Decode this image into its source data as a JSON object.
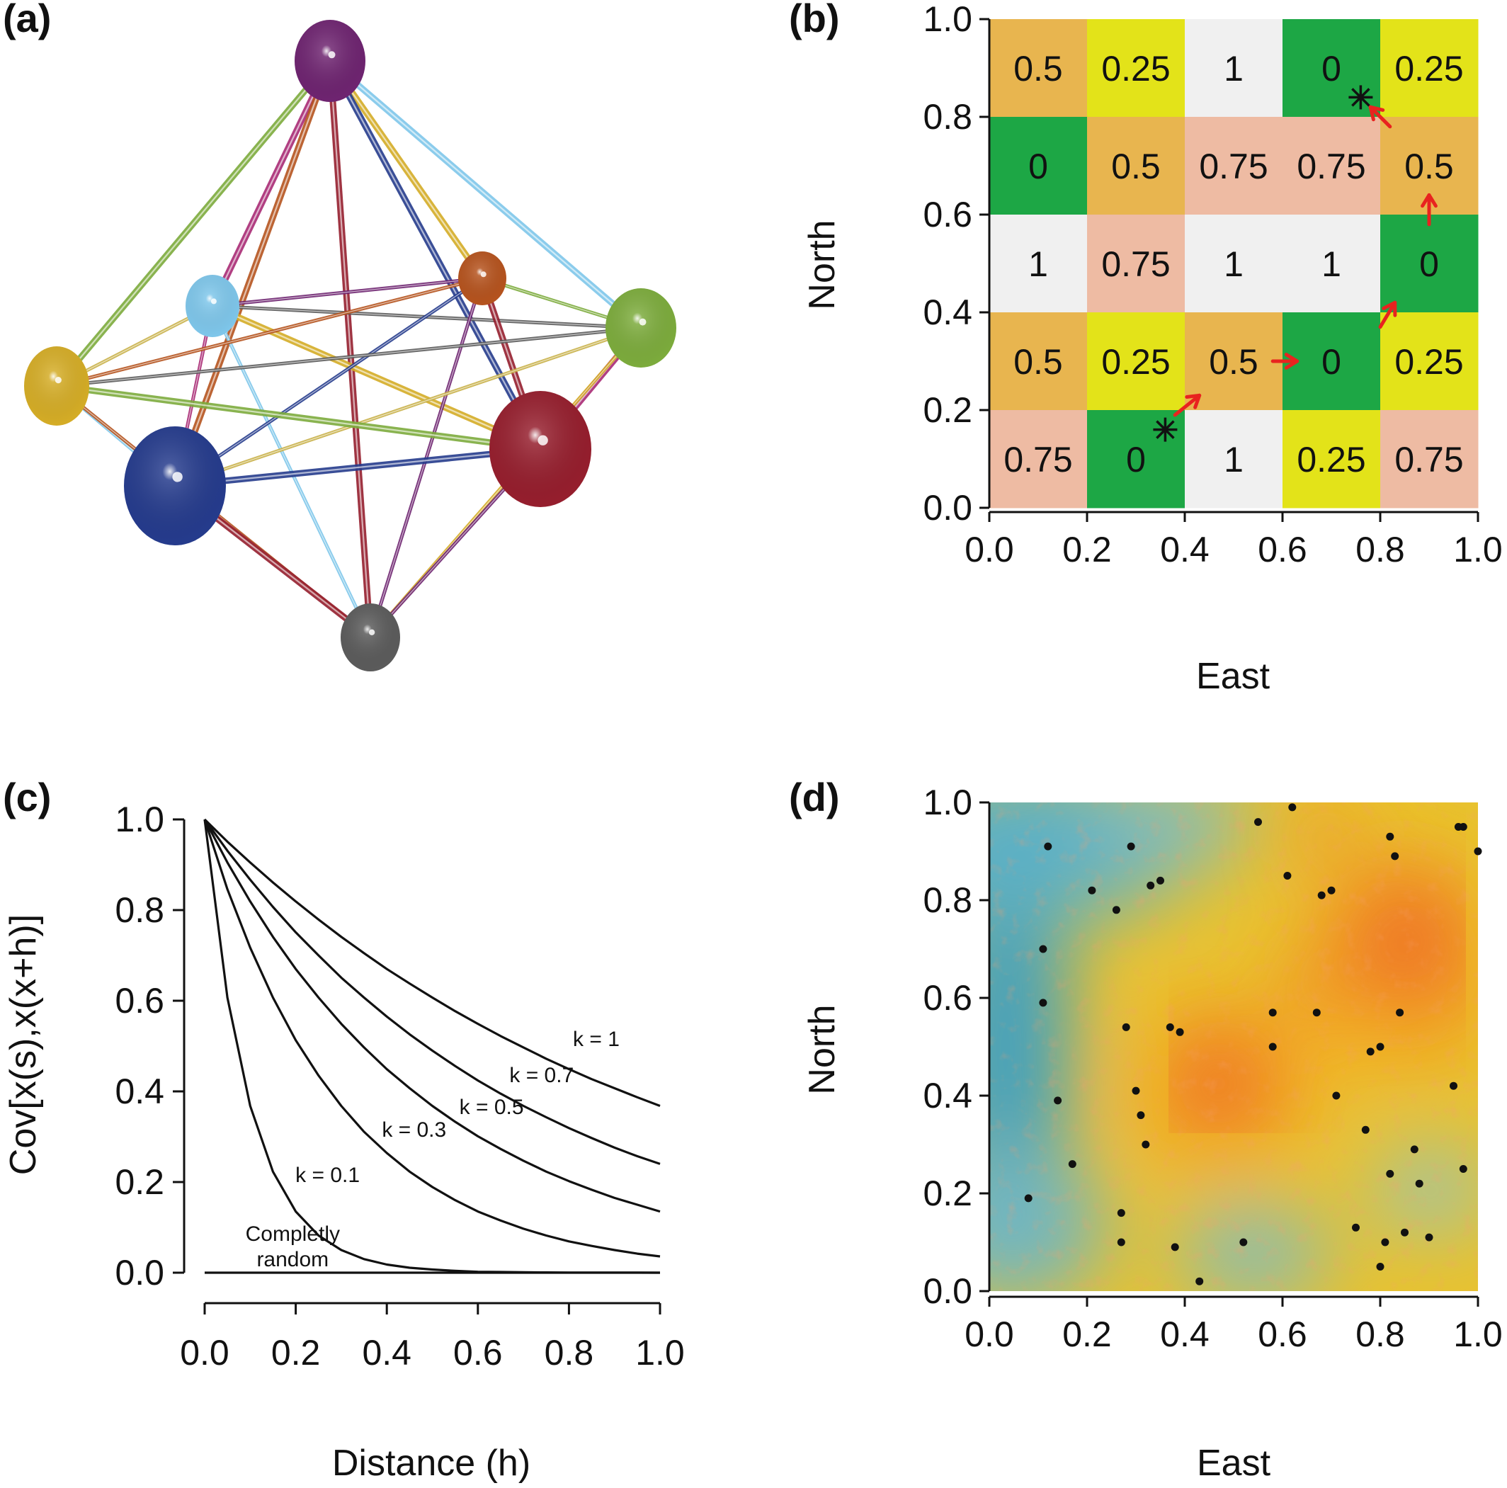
{
  "panel_labels": {
    "a": "(a)",
    "b": "(b)",
    "c": "(c)",
    "d": "(d)"
  },
  "chart_data": [
    {
      "panel": "(a)",
      "type": "network",
      "nodes": [
        {
          "color": "#6e2470"
        },
        {
          "color": "#7ec6ea"
        },
        {
          "color": "#b5531e"
        },
        {
          "color": "#7cab3c"
        },
        {
          "color": "#d4ac26"
        },
        {
          "color": "#253b8c"
        },
        {
          "color": "#951e2d"
        },
        {
          "color": "#5b5b5b"
        }
      ]
    },
    {
      "panel": "(b)",
      "type": "heatmap",
      "xlabel": "East",
      "ylabel": "North",
      "xlim": [
        0,
        1
      ],
      "ylim": [
        0,
        1
      ],
      "xticks": [
        "0.0",
        "0.2",
        "0.4",
        "0.6",
        "0.8",
        "1.0"
      ],
      "yticks": [
        "0.0",
        "0.2",
        "0.4",
        "0.6",
        "0.8",
        "1.0"
      ],
      "grid_rows_top_to_bottom": [
        [
          "0.5",
          "0.25",
          "1",
          "0",
          "0.25"
        ],
        [
          "0",
          "0.5",
          "0.75",
          "0.75",
          "0.5"
        ],
        [
          "1",
          "0.75",
          "1",
          "1",
          "0"
        ],
        [
          "0.5",
          "0.25",
          "0.5",
          "0",
          "0.25"
        ],
        [
          "0.75",
          "0",
          "1",
          "0.25",
          "0.75"
        ]
      ],
      "value_colors": {
        "0": "#1da745",
        "0.25": "#e3e319",
        "0.5": "#e8b54f",
        "0.75": "#eebba3",
        "1": "#f0f0f0"
      },
      "start_marker": {
        "x": 0.36,
        "y": 0.16
      },
      "end_marker": {
        "x": 0.76,
        "y": 0.84
      },
      "arrows": [
        {
          "from": [
            0.38,
            0.19
          ],
          "to": [
            0.43,
            0.23
          ]
        },
        {
          "from": [
            0.58,
            0.3
          ],
          "to": [
            0.63,
            0.3
          ]
        },
        {
          "from": [
            0.8,
            0.37
          ],
          "to": [
            0.83,
            0.42
          ]
        },
        {
          "from": [
            0.9,
            0.58
          ],
          "to": [
            0.9,
            0.64
          ]
        },
        {
          "from": [
            0.82,
            0.78
          ],
          "to": [
            0.78,
            0.82
          ]
        }
      ],
      "arrow_color": "#e8231f"
    },
    {
      "panel": "(c)",
      "type": "line",
      "xlabel": "Distance (h)",
      "ylabel": "Cov[x(s),x(x+h)]",
      "xlim": [
        0,
        1
      ],
      "ylim": [
        0,
        1
      ],
      "xticks": [
        "0.0",
        "0.2",
        "0.4",
        "0.6",
        "0.8",
        "1.0"
      ],
      "yticks": [
        "0.0",
        "0.2",
        "0.4",
        "0.6",
        "0.8",
        "1.0"
      ],
      "x": [
        0,
        0.05,
        0.1,
        0.15,
        0.2,
        0.25,
        0.3,
        0.35,
        0.4,
        0.45,
        0.5,
        0.55,
        0.6,
        0.65,
        0.7,
        0.75,
        0.8,
        0.85,
        0.9,
        0.95,
        1.0
      ],
      "series": [
        {
          "name": "k = 1",
          "values": [
            1,
            0.951,
            0.905,
            0.861,
            0.819,
            0.779,
            0.741,
            0.705,
            0.67,
            0.638,
            0.607,
            0.577,
            0.549,
            0.522,
            0.497,
            0.472,
            0.449,
            0.427,
            0.407,
            0.387,
            0.368
          ],
          "label_at": [
            0.86,
            0.5
          ]
        },
        {
          "name": "k = 0.7",
          "values": [
            1,
            0.931,
            0.867,
            0.807,
            0.751,
            0.7,
            0.651,
            0.607,
            0.565,
            0.526,
            0.49,
            0.456,
            0.424,
            0.395,
            0.368,
            0.343,
            0.319,
            0.297,
            0.276,
            0.257,
            0.24
          ],
          "label_at": [
            0.74,
            0.42
          ]
        },
        {
          "name": "k = 0.5",
          "values": [
            1,
            0.905,
            0.819,
            0.741,
            0.67,
            0.607,
            0.549,
            0.497,
            0.449,
            0.407,
            0.368,
            0.333,
            0.301,
            0.273,
            0.247,
            0.223,
            0.202,
            0.183,
            0.165,
            0.15,
            0.135
          ],
          "label_at": [
            0.63,
            0.35
          ]
        },
        {
          "name": "k = 0.3",
          "values": [
            1,
            0.846,
            0.717,
            0.607,
            0.513,
            0.435,
            0.368,
            0.311,
            0.264,
            0.223,
            0.189,
            0.16,
            0.135,
            0.115,
            0.097,
            0.082,
            0.069,
            0.059,
            0.05,
            0.042,
            0.036
          ],
          "label_at": [
            0.46,
            0.3
          ]
        },
        {
          "name": "k = 0.1",
          "values": [
            1,
            0.607,
            0.368,
            0.223,
            0.135,
            0.082,
            0.05,
            0.03,
            0.018,
            0.011,
            0.007,
            0.004,
            0.002,
            0.0015,
            0.0009,
            0.0006,
            0.0003,
            0.0002,
            0.0001,
            0.0001,
            0.0
          ],
          "label_at": [
            0.27,
            0.2
          ]
        },
        {
          "name": "Completly random",
          "values": [
            0,
            0,
            0,
            0,
            0,
            0,
            0,
            0,
            0,
            0,
            0,
            0,
            0,
            0,
            0,
            0,
            0,
            0,
            0,
            0,
            0
          ],
          "label_lines": [
            "Completly",
            "random"
          ],
          "label_at": [
            0.1,
            0.07
          ]
        }
      ]
    },
    {
      "panel": "(d)",
      "type": "scatter",
      "xlabel": "East",
      "ylabel": "North",
      "xlim": [
        0,
        1
      ],
      "ylim": [
        0,
        1
      ],
      "xticks": [
        "0.0",
        "0.2",
        "0.4",
        "0.6",
        "0.8",
        "1.0"
      ],
      "yticks": [
        "0.0",
        "0.2",
        "0.4",
        "0.6",
        "0.8",
        "1.0"
      ],
      "background": "gaussian random field (blue low, yellow mid, red high)",
      "field_colors": [
        "#3fa0c2",
        "#9bc4a6",
        "#e9c42e",
        "#f2ae22",
        "#ee5a2a"
      ],
      "points": [
        [
          0.62,
          0.99
        ],
        [
          0.55,
          0.96
        ],
        [
          0.12,
          0.91
        ],
        [
          0.29,
          0.91
        ],
        [
          0.82,
          0.93
        ],
        [
          0.96,
          0.95
        ],
        [
          0.97,
          0.95
        ],
        [
          0.83,
          0.89
        ],
        [
          1.0,
          0.9
        ],
        [
          0.21,
          0.82
        ],
        [
          0.33,
          0.83
        ],
        [
          0.35,
          0.84
        ],
        [
          0.61,
          0.85
        ],
        [
          0.7,
          0.82
        ],
        [
          0.68,
          0.81
        ],
        [
          0.26,
          0.78
        ],
        [
          0.11,
          0.7
        ],
        [
          0.11,
          0.59
        ],
        [
          0.28,
          0.54
        ],
        [
          0.37,
          0.54
        ],
        [
          0.39,
          0.53
        ],
        [
          0.58,
          0.57
        ],
        [
          0.67,
          0.57
        ],
        [
          0.84,
          0.57
        ],
        [
          0.58,
          0.5
        ],
        [
          0.78,
          0.49
        ],
        [
          0.8,
          0.5
        ],
        [
          0.14,
          0.39
        ],
        [
          0.3,
          0.41
        ],
        [
          0.31,
          0.36
        ],
        [
          0.71,
          0.4
        ],
        [
          0.95,
          0.42
        ],
        [
          0.32,
          0.3
        ],
        [
          0.77,
          0.33
        ],
        [
          0.87,
          0.29
        ],
        [
          0.17,
          0.26
        ],
        [
          0.82,
          0.24
        ],
        [
          0.88,
          0.22
        ],
        [
          0.97,
          0.25
        ],
        [
          0.08,
          0.19
        ],
        [
          0.27,
          0.16
        ],
        [
          0.75,
          0.13
        ],
        [
          0.85,
          0.12
        ],
        [
          0.9,
          0.11
        ],
        [
          0.27,
          0.1
        ],
        [
          0.38,
          0.09
        ],
        [
          0.52,
          0.1
        ],
        [
          0.81,
          0.1
        ],
        [
          0.8,
          0.05
        ],
        [
          0.43,
          0.02
        ]
      ]
    }
  ]
}
